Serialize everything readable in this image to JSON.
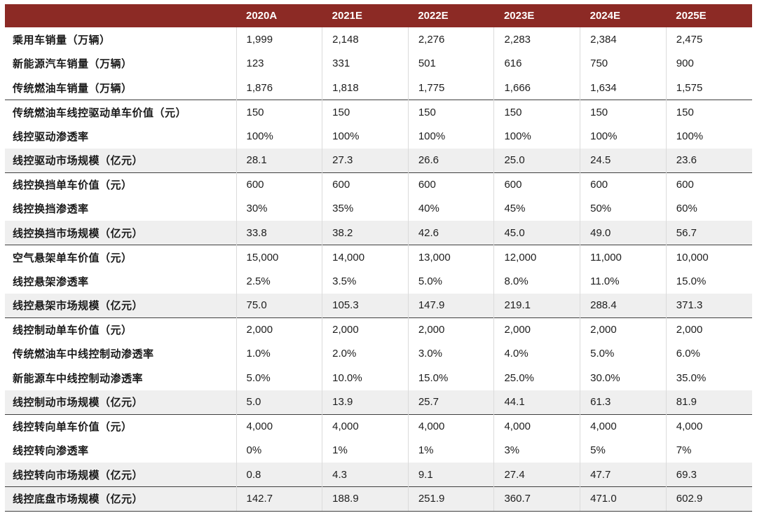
{
  "colors": {
    "header_bg": "#8C2A25",
    "header_text": "#FFFFFF",
    "shaded_row_bg": "#EFEFEF",
    "section_line": "#3F3F3F",
    "column_line": "#DBDBDB",
    "body_text": "#1E1E1E"
  },
  "table": {
    "columns": [
      "2020A",
      "2021E",
      "2022E",
      "2023E",
      "2024E",
      "2025E"
    ],
    "rows": [
      {
        "label": "乘用车销量（万辆）",
        "values": [
          "1,999",
          "2,148",
          "2,276",
          "2,283",
          "2,384",
          "2,475"
        ],
        "shaded": false,
        "section_start": false
      },
      {
        "label": "新能源汽车销量（万辆）",
        "values": [
          "123",
          "331",
          "501",
          "616",
          "750",
          "900"
        ],
        "shaded": false,
        "section_start": false
      },
      {
        "label": "传统燃油车销量（万辆）",
        "values": [
          "1,876",
          "1,818",
          "1,775",
          "1,666",
          "1,634",
          "1,575"
        ],
        "shaded": false,
        "section_start": false
      },
      {
        "label": "传统燃油车线控驱动单车价值（元）",
        "values": [
          "150",
          "150",
          "150",
          "150",
          "150",
          "150"
        ],
        "shaded": false,
        "section_start": true
      },
      {
        "label": "线控驱动渗透率",
        "values": [
          "100%",
          "100%",
          "100%",
          "100%",
          "100%",
          "100%"
        ],
        "shaded": false,
        "section_start": false
      },
      {
        "label": "线控驱动市场规模（亿元）",
        "values": [
          "28.1",
          "27.3",
          "26.6",
          "25.0",
          "24.5",
          "23.6"
        ],
        "shaded": true,
        "section_start": false
      },
      {
        "label": "线控换挡单车价值（元）",
        "values": [
          "600",
          "600",
          "600",
          "600",
          "600",
          "600"
        ],
        "shaded": false,
        "section_start": true
      },
      {
        "label": "线控换挡渗透率",
        "values": [
          "30%",
          "35%",
          "40%",
          "45%",
          "50%",
          "60%"
        ],
        "shaded": false,
        "section_start": false
      },
      {
        "label": "线控换挡市场规模（亿元）",
        "values": [
          "33.8",
          "38.2",
          "42.6",
          "45.0",
          "49.0",
          "56.7"
        ],
        "shaded": true,
        "section_start": false
      },
      {
        "label": "空气悬架单车价值（元）",
        "values": [
          "15,000",
          "14,000",
          "13,000",
          "12,000",
          "11,000",
          "10,000"
        ],
        "shaded": false,
        "section_start": true
      },
      {
        "label": "线控悬架渗透率",
        "values": [
          "2.5%",
          "3.5%",
          "5.0%",
          "8.0%",
          "11.0%",
          "15.0%"
        ],
        "shaded": false,
        "section_start": false
      },
      {
        "label": "线控悬架市场规模（亿元）",
        "values": [
          "75.0",
          "105.3",
          "147.9",
          "219.1",
          "288.4",
          "371.3"
        ],
        "shaded": true,
        "section_start": false
      },
      {
        "label": "线控制动单车价值（元）",
        "values": [
          "2,000",
          "2,000",
          "2,000",
          "2,000",
          "2,000",
          "2,000"
        ],
        "shaded": false,
        "section_start": true
      },
      {
        "label": "传统燃油车中线控制动渗透率",
        "values": [
          "1.0%",
          "2.0%",
          "3.0%",
          "4.0%",
          "5.0%",
          "6.0%"
        ],
        "shaded": false,
        "section_start": false
      },
      {
        "label": "新能源车中线控制动渗透率",
        "values": [
          "5.0%",
          "10.0%",
          "15.0%",
          "25.0%",
          "30.0%",
          "35.0%"
        ],
        "shaded": false,
        "section_start": false
      },
      {
        "label": "线控制动市场规模（亿元）",
        "values": [
          "5.0",
          "13.9",
          "25.7",
          "44.1",
          "61.3",
          "81.9"
        ],
        "shaded": true,
        "section_start": false
      },
      {
        "label": "线控转向单车价值（元）",
        "values": [
          "4,000",
          "4,000",
          "4,000",
          "4,000",
          "4,000",
          "4,000"
        ],
        "shaded": false,
        "section_start": true
      },
      {
        "label": "线控转向渗透率",
        "values": [
          "0%",
          "1%",
          "1%",
          "3%",
          "5%",
          "7%"
        ],
        "shaded": false,
        "section_start": false
      },
      {
        "label": "线控转向市场规模（亿元）",
        "values": [
          "0.8",
          "4.3",
          "9.1",
          "27.4",
          "47.7",
          "69.3"
        ],
        "shaded": true,
        "section_start": false
      },
      {
        "label": "线控底盘市场规模（亿元）",
        "values": [
          "142.7",
          "188.9",
          "251.9",
          "360.7",
          "471.0",
          "602.9"
        ],
        "shaded": true,
        "section_start": true
      }
    ]
  }
}
